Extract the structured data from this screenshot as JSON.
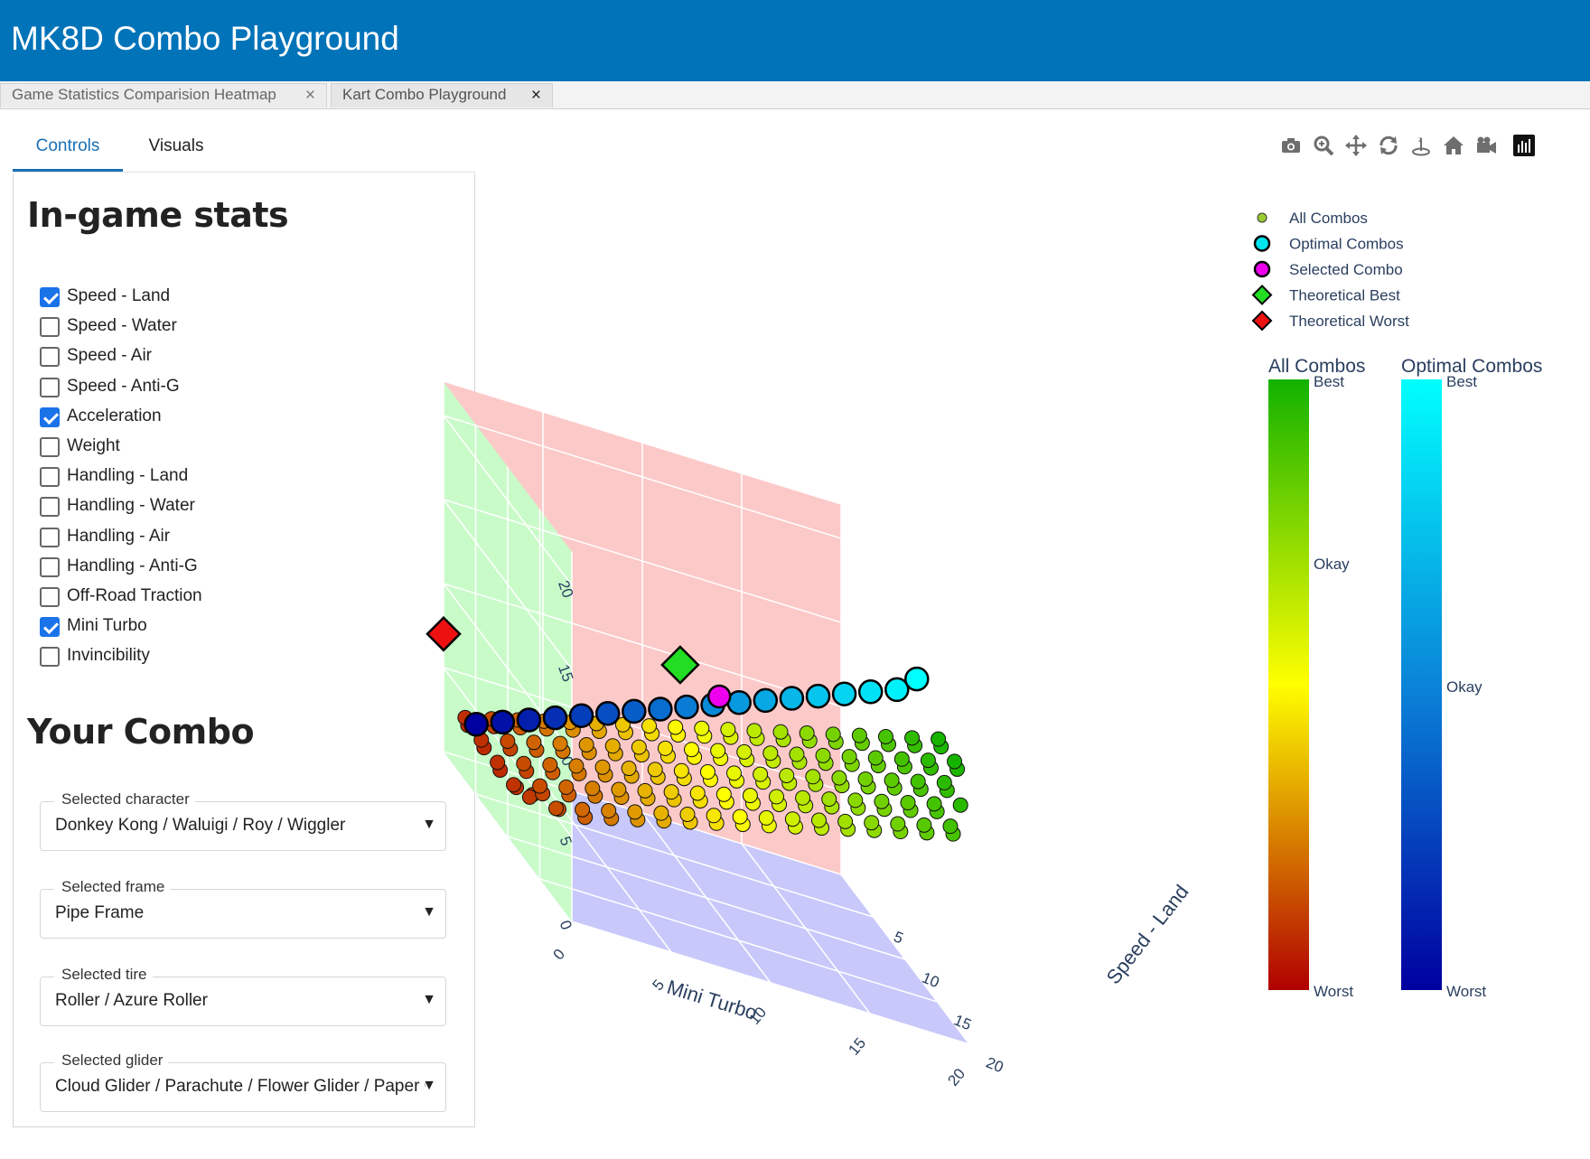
{
  "app": {
    "title": "MK8D Combo Playground"
  },
  "doc_tabs": [
    {
      "label": "Game Statistics Comparision Heatmap",
      "close": "×"
    },
    {
      "label": "Kart Combo Playground",
      "close": "×"
    }
  ],
  "sub_tabs": [
    {
      "label": "Controls"
    },
    {
      "label": "Visuals"
    }
  ],
  "stats": {
    "heading": "In-game stats",
    "items": [
      {
        "label": "Speed - Land",
        "checked": true
      },
      {
        "label": "Speed - Water",
        "checked": false
      },
      {
        "label": "Speed - Air",
        "checked": false
      },
      {
        "label": "Speed - Anti-G",
        "checked": false
      },
      {
        "label": "Acceleration",
        "checked": true
      },
      {
        "label": "Weight",
        "checked": false
      },
      {
        "label": "Handling - Land",
        "checked": false
      },
      {
        "label": "Handling - Water",
        "checked": false
      },
      {
        "label": "Handling - Air",
        "checked": false
      },
      {
        "label": "Handling - Anti-G",
        "checked": false
      },
      {
        "label": "Off-Road Traction",
        "checked": false
      },
      {
        "label": "Mini Turbo",
        "checked": true
      },
      {
        "label": "Invincibility",
        "checked": false
      }
    ]
  },
  "combo": {
    "heading": "Your Combo",
    "fields": [
      {
        "label": "Selected character",
        "value": "Donkey Kong / Waluigi / Roy / Wiggler"
      },
      {
        "label": "Selected frame",
        "value": "Pipe Frame"
      },
      {
        "label": "Selected tire",
        "value": "Roller / Azure Roller"
      },
      {
        "label": "Selected glider",
        "value": "Cloud Glider / Parachute / Flower Glider / Paper Glider"
      }
    ],
    "dropdown_arrow": "▼"
  },
  "modebar": {
    "icons": [
      "camera-icon",
      "zoom-icon",
      "pan-icon",
      "orbit-icon",
      "turntable-icon",
      "home-icon",
      "camera-view-icon",
      "plotly-logo-icon"
    ]
  },
  "chart_data": {
    "type": "scatter3d",
    "axes": {
      "x": {
        "label": "Mini Turbo",
        "ticks": [
          "0",
          "5",
          "10",
          "15",
          "20"
        ]
      },
      "y": {
        "label": "Speed - Land",
        "ticks": [
          "5",
          "10",
          "15",
          "20"
        ]
      },
      "z": {
        "label": "",
        "ticks": [
          "0",
          "5",
          "10",
          "15",
          "20"
        ]
      }
    },
    "walls": {
      "floor": "#c8c8fb",
      "back": "#fcc9c9",
      "side": "#c9fbc9"
    },
    "legend": {
      "placement": "top-right",
      "entries": [
        {
          "name": "All Combos",
          "symbol": "circle-small",
          "color": "#9acd32"
        },
        {
          "name": "Optimal Combos",
          "symbol": "circle",
          "color": "#00e5f0"
        },
        {
          "name": "Selected Combo",
          "symbol": "circle",
          "color": "#ee00ee"
        },
        {
          "name": "Theoretical Best",
          "symbol": "diamond",
          "color": "#22dd22"
        },
        {
          "name": "Theoretical Worst",
          "symbol": "diamond",
          "color": "#ee1111"
        }
      ]
    },
    "colorbars": [
      {
        "title": "All Combos",
        "labels": [
          "Best",
          "Okay",
          "Worst"
        ],
        "colors": [
          "#12b200",
          "#ffff00",
          "#b00000"
        ]
      },
      {
        "title": "Optimal Combos",
        "labels": [
          "Best",
          "Okay",
          "Worst"
        ],
        "colors": [
          "#00ffff",
          "#0a84d8",
          "#0000a0"
        ]
      }
    ],
    "optimal_combos": [
      [
        1,
        2,
        3
      ],
      [
        2,
        3,
        4
      ],
      [
        3,
        4,
        5
      ],
      [
        4,
        5,
        6
      ],
      [
        5,
        6,
        7
      ],
      [
        6,
        7,
        8
      ],
      [
        7,
        8,
        9
      ],
      [
        8,
        9,
        10
      ],
      [
        9,
        10,
        11
      ],
      [
        10,
        11,
        12
      ],
      [
        11,
        12,
        13
      ],
      [
        12,
        13,
        14
      ],
      [
        13,
        14,
        15
      ],
      [
        14,
        15,
        16
      ],
      [
        15,
        16,
        17
      ],
      [
        16,
        17,
        18
      ],
      [
        17,
        18,
        19
      ],
      [
        18,
        18,
        20
      ]
    ],
    "selected_combo": [
      10,
      12,
      13
    ],
    "theoretical_best": [
      9,
      9,
      13
    ],
    "theoretical_worst": [
      0,
      0,
      7
    ]
  }
}
